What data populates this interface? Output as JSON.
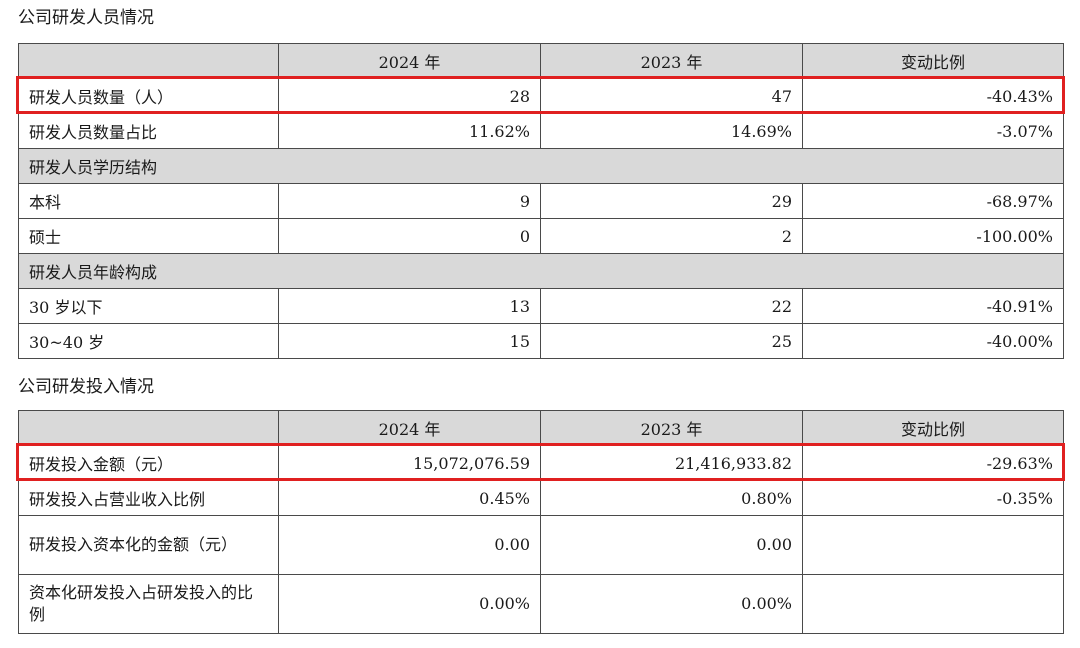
{
  "personnel": {
    "title": "公司研发人员情况",
    "headers": [
      "",
      "2024 年",
      "2023 年",
      "变动比例"
    ],
    "rows": [
      {
        "label": "研发人员数量（人）",
        "v2024": "28",
        "v2023": "47",
        "change": "-40.43%"
      },
      {
        "label": "研发人员数量占比",
        "v2024": "11.62%",
        "v2023": "14.69%",
        "change": "-3.07%"
      }
    ],
    "edu_group": "研发人员学历结构",
    "edu_rows": [
      {
        "label": "本科",
        "v2024": "9",
        "v2023": "29",
        "change": "-68.97%"
      },
      {
        "label": "硕士",
        "v2024": "0",
        "v2023": "2",
        "change": "-100.00%"
      }
    ],
    "age_group": "研发人员年龄构成",
    "age_rows": [
      {
        "label": "30 岁以下",
        "v2024": "13",
        "v2023": "22",
        "change": "-40.91%"
      },
      {
        "label": "30~40 岁",
        "v2024": "15",
        "v2023": "25",
        "change": "-40.00%"
      }
    ]
  },
  "investment": {
    "title": "公司研发投入情况",
    "headers": [
      "",
      "2024 年",
      "2023 年",
      "变动比例"
    ],
    "rows": [
      {
        "label": "研发投入金额（元）",
        "v2024": "15,072,076.59",
        "v2023": "21,416,933.82",
        "change": "-29.63%"
      },
      {
        "label": "研发投入占营业收入比例",
        "v2024": "0.45%",
        "v2023": "0.80%",
        "change": "-0.35%"
      },
      {
        "label": "研发投入资本化的金额（元）",
        "v2024": "0.00",
        "v2023": "0.00",
        "change": ""
      },
      {
        "label": "资本化研发投入占研发投入的比例",
        "v2024": "0.00%",
        "v2023": "0.00%",
        "change": ""
      }
    ]
  },
  "highlight_color": "#e02020",
  "header_bg": "#d9d9d9"
}
